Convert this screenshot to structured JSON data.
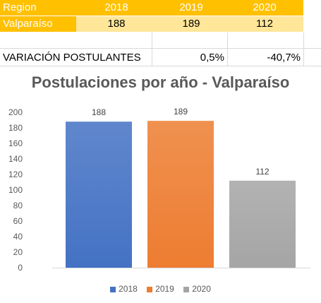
{
  "table": {
    "header": {
      "label": "Region",
      "years": [
        "2018",
        "2019",
        "2020"
      ]
    },
    "region_row": {
      "label": "Valparaíso",
      "values": [
        "188",
        "189",
        "112"
      ]
    },
    "variation_row": {
      "label": "VARIACIÓN POSTULANTES",
      "values": [
        "0,5%",
        "-40,7%"
      ]
    },
    "colors": {
      "header_bg": "#FFC000",
      "header_text": "#FFFFFF",
      "row_bg": "#FFE699"
    }
  },
  "chart_data": {
    "type": "bar",
    "title": "Postulaciones por año - Valparaíso",
    "categories": [
      "2018",
      "2019",
      "2020"
    ],
    "values": [
      188,
      189,
      112
    ],
    "data_labels": [
      "188",
      "189",
      "112"
    ],
    "ylim": [
      0,
      200
    ],
    "yticks": [
      "0",
      "20",
      "40",
      "60",
      "80",
      "100",
      "120",
      "140",
      "160",
      "180",
      "200"
    ],
    "colors": [
      "#4472C4",
      "#ED7D31",
      "#A5A5A5"
    ],
    "legend": [
      "2018",
      "2019",
      "2020"
    ],
    "legend_position": "bottom",
    "grid": false
  }
}
